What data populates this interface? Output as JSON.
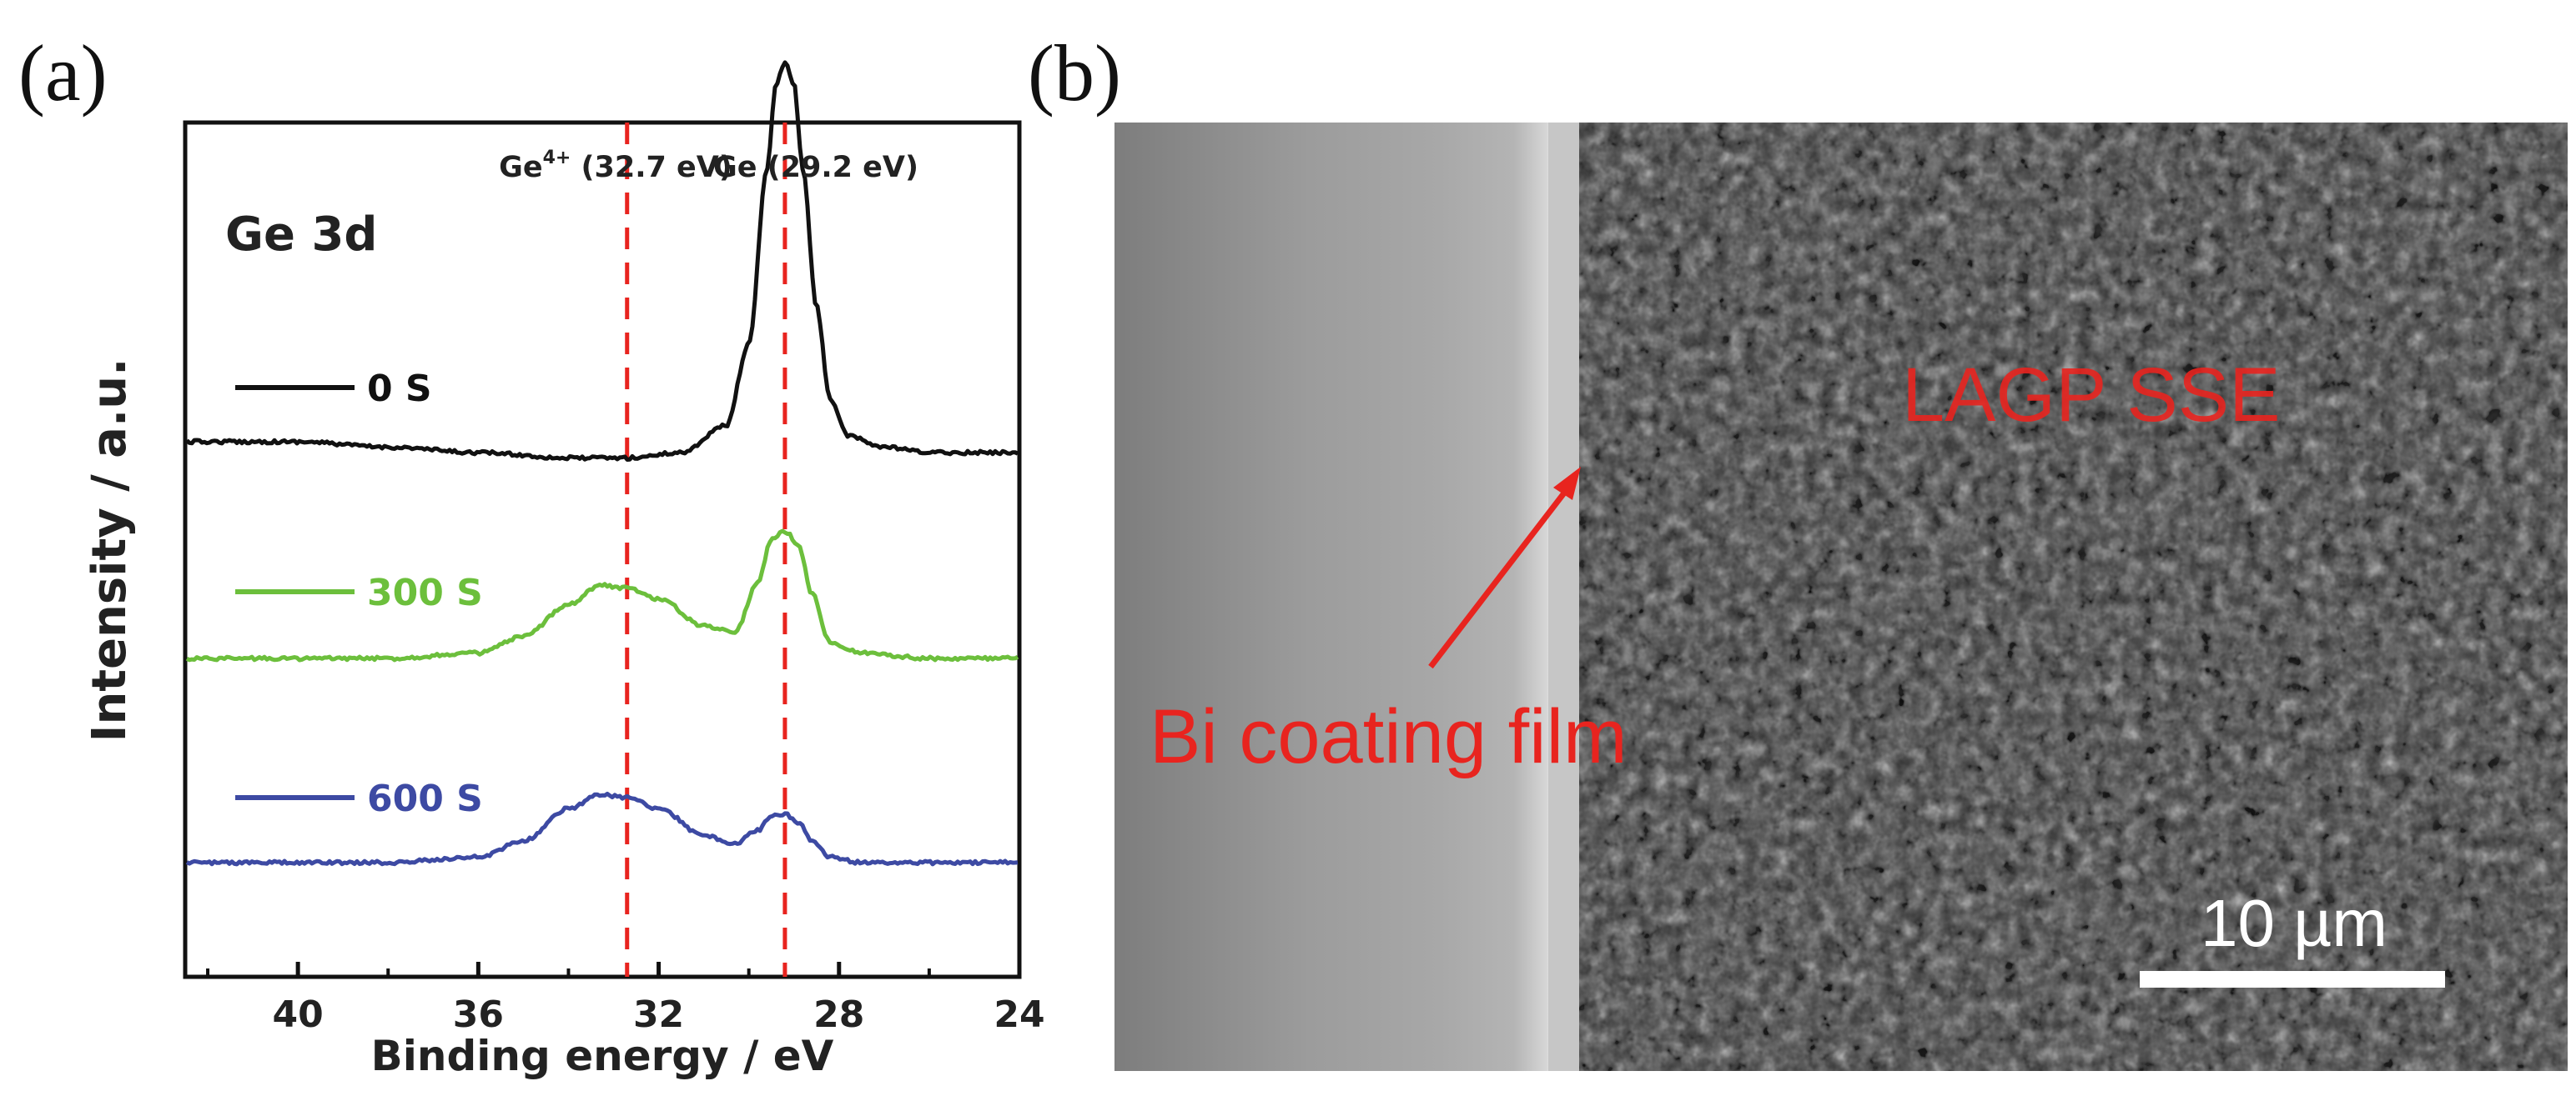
{
  "panel_a": {
    "letter": "(a)",
    "spectrum_label": "Ge 3d",
    "peak_labels": [
      {
        "base": "Ge",
        "sup": "4+",
        "rest": " (32.7 eV)",
        "position_eV": 32.7
      },
      {
        "base": "Ge",
        "sup": "",
        "rest": " (29.2 eV)",
        "position_eV": 29.2
      }
    ]
  },
  "panel_b": {
    "letter": "(b)",
    "label_sse": "LAGP SSE",
    "label_coating": "Bi coating film",
    "scale_bar_label": "10 µm",
    "label_color": "#e8241f"
  },
  "chart_data": {
    "type": "line",
    "title": "Ge 3d",
    "xlabel": "Binding energy / eV",
    "ylabel": "Intensity / a.u.",
    "xlim": [
      42.5,
      24
    ],
    "x_reversed": true,
    "y_ticks_shown": false,
    "xticks": [
      40,
      36,
      32,
      28,
      24
    ],
    "reference_lines_eV": [
      32.7,
      29.2
    ],
    "reference_line_color": "#e8241f",
    "series": [
      {
        "name": "0 S",
        "color": "#111111",
        "x": [
          42.5,
          40,
          38,
          36,
          34,
          32.7,
          31.5,
          30.5,
          30.0,
          29.6,
          29.4,
          29.2,
          29.0,
          28.8,
          28.5,
          28.2,
          27.8,
          27,
          26,
          24
        ],
        "y": [
          0.0,
          0.0,
          -0.01,
          -0.02,
          -0.03,
          -0.03,
          -0.02,
          0.03,
          0.18,
          0.5,
          0.66,
          0.7,
          0.66,
          0.5,
          0.25,
          0.08,
          0.01,
          -0.01,
          -0.02,
          -0.02
        ]
      },
      {
        "name": "300 S",
        "color": "#6cbf3c",
        "x": [
          42.5,
          40,
          38,
          36,
          35,
          34,
          33.3,
          32.7,
          32,
          31,
          30.3,
          29.8,
          29.5,
          29.2,
          28.9,
          28.6,
          28.2,
          27.5,
          26,
          24
        ],
        "y": [
          0.0,
          0.0,
          0.0,
          0.01,
          0.04,
          0.1,
          0.135,
          0.13,
          0.11,
          0.06,
          0.05,
          0.14,
          0.22,
          0.235,
          0.21,
          0.12,
          0.03,
          0.01,
          0.0,
          0.0
        ]
      },
      {
        "name": "600 S",
        "color": "#3d4aa3",
        "x": [
          42.5,
          40,
          38,
          36,
          35,
          34,
          33.3,
          32.7,
          32,
          31,
          30.3,
          29.8,
          29.5,
          29.2,
          28.9,
          28.6,
          28.2,
          27.5,
          26,
          24
        ],
        "y": [
          0.0,
          0.0,
          0.0,
          0.01,
          0.04,
          0.1,
          0.125,
          0.12,
          0.1,
          0.05,
          0.035,
          0.06,
          0.085,
          0.09,
          0.075,
          0.04,
          0.01,
          0.0,
          0.0,
          0.0
        ]
      }
    ]
  }
}
